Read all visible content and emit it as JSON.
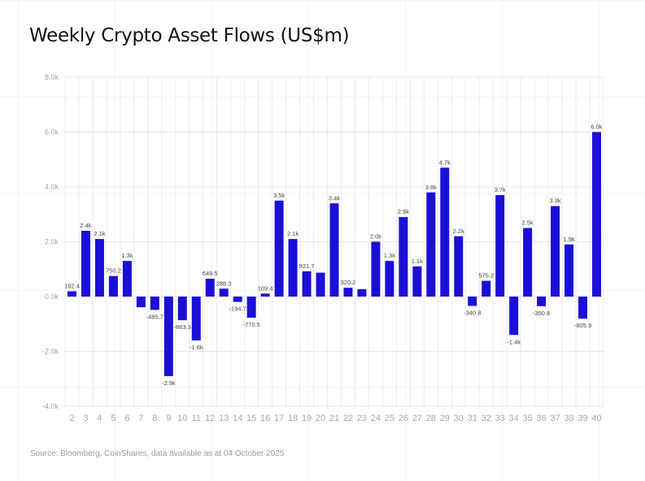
{
  "chart_data": {
    "type": "bar",
    "title": "Weekly Crypto Asset Flows (US$m)",
    "xlabel": "",
    "ylabel": "",
    "ylim": [
      -4000,
      8000
    ],
    "yticks": [
      -4000,
      -2000,
      0,
      2000,
      4000,
      6000,
      8000
    ],
    "ytick_labels": [
      "-4.0k",
      "-2.0k",
      "0.0k",
      "2.0k",
      "4.0k",
      "6.0k",
      "8.0k"
    ],
    "grid": true,
    "bar_color": "#1a0fd6",
    "categories": [
      "2",
      "3",
      "4",
      "5",
      "6",
      "7",
      "8",
      "9",
      "10",
      "11",
      "12",
      "13",
      "14",
      "15",
      "16",
      "17",
      "18",
      "19",
      "20",
      "21",
      "22",
      "23",
      "24",
      "25",
      "26",
      "27",
      "28",
      "29",
      "30",
      "31",
      "32",
      "33",
      "34",
      "35",
      "36",
      "37",
      "38",
      "39",
      "40"
    ],
    "values": [
      192.4,
      2400,
      2100,
      750.2,
      1300,
      -390,
      -485.7,
      -2900,
      -863.3,
      -1600,
      649.5,
      288.3,
      -194.7,
      -770.5,
      109.4,
      3500,
      2100,
      921.7,
      870,
      3400,
      320.2,
      270,
      2000,
      1300,
      2900,
      1100,
      3800,
      4700,
      2200,
      -340.8,
      575.2,
      3700,
      -1400,
      2500,
      -350.6,
      3300,
      1900,
      -805.9,
      6000
    ],
    "data_labels": [
      "192.4",
      "2.4k",
      "2.1k",
      "750.2",
      "1.3k",
      "",
      "-485.7",
      "-2.9k",
      "-863.3",
      "-1.6k",
      "649.5",
      "288.3",
      "-194.7",
      "-770.5",
      "109.4",
      "3.5k",
      "2.1k",
      "921.7",
      "",
      "3.4k",
      "320.2",
      "",
      "2.0k",
      "1.3k",
      "2.9k",
      "1.1k",
      "3.8k",
      "4.7k",
      "2.2k",
      "-340.8",
      "575.2",
      "3.7k",
      "-1.4k",
      "2.5k",
      "-350.6",
      "3.3k",
      "1.9k",
      "-805.9",
      "6.0k"
    ]
  },
  "source": "Source: Bloomberg, CoinShares, data available as at 04 October 2025"
}
